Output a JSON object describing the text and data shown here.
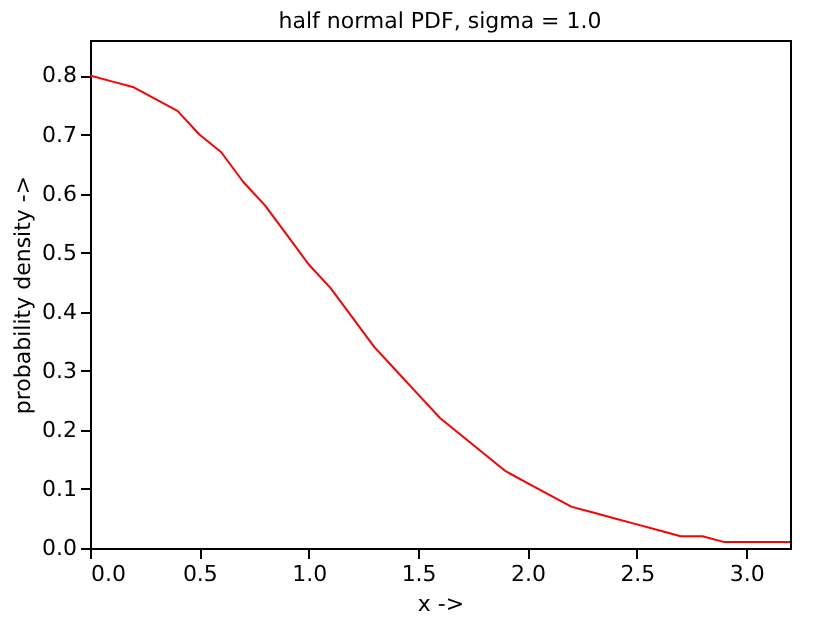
{
  "chart_data": {
    "type": "line",
    "title": "half normal PDF, sigma = 1.0",
    "xlabel": "x ->",
    "ylabel": "probability density ->",
    "x": [
      0,
      0.1,
      0.2,
      0.3,
      0.4,
      0.5,
      0.6,
      0.7,
      0.8,
      0.9,
      1.0,
      1.1,
      1.2,
      1.3,
      1.4,
      1.5,
      1.6,
      1.7,
      1.8,
      1.9,
      2.0,
      2.1,
      2.2,
      2.3,
      2.4,
      2.5,
      2.6,
      2.7,
      2.8,
      2.9,
      3.0,
      3.1,
      3.2
    ],
    "series": [
      {
        "color": "#ff0000",
        "values": [
          0.8,
          0.79,
          0.78,
          0.76,
          0.74,
          0.7,
          0.67,
          0.62,
          0.58,
          0.53,
          0.48,
          0.44,
          0.39,
          0.34,
          0.3,
          0.26,
          0.22,
          0.19,
          0.16,
          0.13,
          0.11,
          0.09,
          0.07,
          0.06,
          0.05,
          0.04,
          0.03,
          0.02,
          0.02,
          0.01,
          0.01,
          0.01,
          0.01
        ]
      }
    ],
    "xlim": [
      0,
      3.2
    ],
    "xticks": [
      {
        "value": 0,
        "label": "0.0"
      },
      0.5,
      {
        "value": 1,
        "label": "1.0"
      },
      1.5,
      {
        "value": 2,
        "label": "2.0"
      },
      2.5,
      {
        "value": 3,
        "label": "3.0"
      }
    ],
    "ylim": [
      0,
      0.86
    ],
    "yticks": [
      {
        "value": 0,
        "label": "0.0"
      },
      0.1,
      0.2,
      0.3,
      0.4,
      0.5,
      0.6,
      0.7,
      0.8
    ],
    "grid": false,
    "marker": "none",
    "line_style": "solid"
  }
}
